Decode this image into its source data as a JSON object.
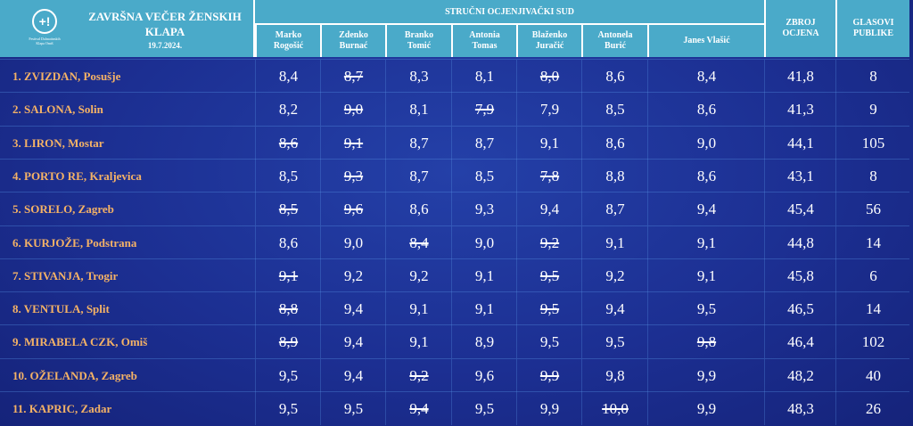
{
  "header": {
    "logo_text": "Festival Dalmatinskih Klapa Omiš",
    "title": "ZAVRŠNA VEČER ŽENSKIH KLAPA",
    "date": "19.7.2024.",
    "jury_label": "STRUČNI OCJENJIVAČKI SUD",
    "judges": [
      "Marko Rogošić",
      "Zdenko Burnać",
      "Branko Tomić",
      "Antonia Tomas",
      "Blaženko Juračić",
      "Antonela Burić",
      "Janes Vlašić"
    ],
    "total_label": "ZBROJ OCJENA",
    "votes_label": "GLASOVI PUBLIKE"
  },
  "rows": [
    {
      "name": "1.  ZVIZDAN, Posušje",
      "scores": [
        [
          "8,4",
          0
        ],
        [
          "8,7",
          1
        ],
        [
          "8,3",
          0
        ],
        [
          "8,1",
          0
        ],
        [
          "8,0",
          1
        ],
        [
          "8,6",
          0
        ],
        [
          "8,4",
          0
        ]
      ],
      "total": "41,8",
      "votes": "8"
    },
    {
      "name": "2.  SALONA, Solin",
      "scores": [
        [
          "8,2",
          0
        ],
        [
          "9,0",
          1
        ],
        [
          "8,1",
          0
        ],
        [
          "7,9",
          1
        ],
        [
          "7,9",
          0
        ],
        [
          "8,5",
          0
        ],
        [
          "8,6",
          0
        ]
      ],
      "total": "41,3",
      "votes": "9"
    },
    {
      "name": "3.  LIRON, Mostar",
      "scores": [
        [
          "8,6",
          1
        ],
        [
          "9,1",
          1
        ],
        [
          "8,7",
          0
        ],
        [
          "8,7",
          0
        ],
        [
          "9,1",
          0
        ],
        [
          "8,6",
          0
        ],
        [
          "9,0",
          0
        ]
      ],
      "total": "44,1",
      "votes": "105"
    },
    {
      "name": "4.  PORTO RE, Kraljevica",
      "scores": [
        [
          "8,5",
          0
        ],
        [
          "9,3",
          1
        ],
        [
          "8,7",
          0
        ],
        [
          "8,5",
          0
        ],
        [
          "7,8",
          1
        ],
        [
          "8,8",
          0
        ],
        [
          "8,6",
          0
        ]
      ],
      "total": "43,1",
      "votes": "8"
    },
    {
      "name": "5.  SORELO, Zagreb",
      "scores": [
        [
          "8,5",
          1
        ],
        [
          "9,6",
          1
        ],
        [
          "8,6",
          0
        ],
        [
          "9,3",
          0
        ],
        [
          "9,4",
          0
        ],
        [
          "8,7",
          0
        ],
        [
          "9,4",
          0
        ]
      ],
      "total": "45,4",
      "votes": "56"
    },
    {
      "name": "6.  KURJOŽE, Podstrana",
      "scores": [
        [
          "8,6",
          0
        ],
        [
          "9,0",
          0
        ],
        [
          "8,4",
          1
        ],
        [
          "9,0",
          0
        ],
        [
          "9,2",
          1
        ],
        [
          "9,1",
          0
        ],
        [
          "9,1",
          0
        ]
      ],
      "total": "44,8",
      "votes": "14"
    },
    {
      "name": "7.  STIVANJA, Trogir",
      "scores": [
        [
          "9,1",
          1
        ],
        [
          "9,2",
          0
        ],
        [
          "9,2",
          0
        ],
        [
          "9,1",
          0
        ],
        [
          "9,5",
          1
        ],
        [
          "9,2",
          0
        ],
        [
          "9,1",
          0
        ]
      ],
      "total": "45,8",
      "votes": "6"
    },
    {
      "name": "8.  VENTULA, Split",
      "scores": [
        [
          "8,8",
          1
        ],
        [
          "9,4",
          0
        ],
        [
          "9,1",
          0
        ],
        [
          "9,1",
          0
        ],
        [
          "9,5",
          1
        ],
        [
          "9,4",
          0
        ],
        [
          "9,5",
          0
        ]
      ],
      "total": "46,5",
      "votes": "14"
    },
    {
      "name": "9.  MIRABELA CZK, Omiš",
      "scores": [
        [
          "8,9",
          1
        ],
        [
          "9,4",
          0
        ],
        [
          "9,1",
          0
        ],
        [
          "8,9",
          0
        ],
        [
          "9,5",
          0
        ],
        [
          "9,5",
          0
        ],
        [
          "9,8",
          1
        ]
      ],
      "total": "46,4",
      "votes": "102"
    },
    {
      "name": "10. OŽELANDA, Zagreb",
      "scores": [
        [
          "9,5",
          0
        ],
        [
          "9,4",
          0
        ],
        [
          "9,2",
          1
        ],
        [
          "9,6",
          0
        ],
        [
          "9,9",
          1
        ],
        [
          "9,8",
          0
        ],
        [
          "9,9",
          0
        ]
      ],
      "total": "48,2",
      "votes": "40"
    },
    {
      "name": "11. KAPRIC, Zadar",
      "scores": [
        [
          "9,5",
          0
        ],
        [
          "9,5",
          0
        ],
        [
          "9,4",
          1
        ],
        [
          "9,5",
          0
        ],
        [
          "9,9",
          0
        ],
        [
          "10,0",
          1
        ],
        [
          "9,9",
          0
        ]
      ],
      "total": "48,3",
      "votes": "26"
    }
  ]
}
